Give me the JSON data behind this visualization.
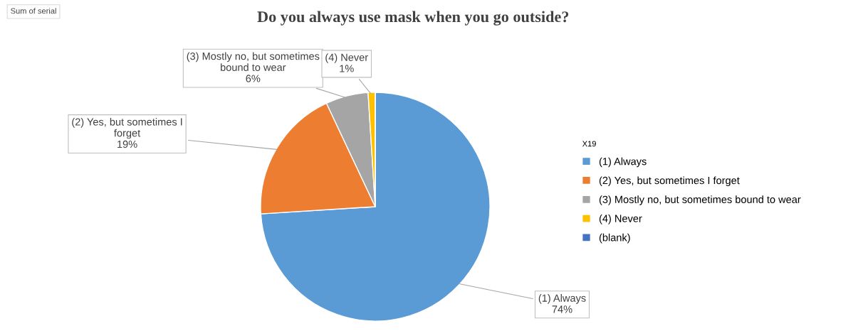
{
  "chart_data": {
    "type": "pie",
    "title": "Do you always use mask when you go outside?",
    "categories": [
      "(1) Always",
      "(2) Yes, but sometimes I forget",
      "(3) Mostly no, but sometimes bound to wear",
      "(4) Never",
      "(blank)"
    ],
    "values": [
      74,
      19,
      6,
      1,
      0
    ],
    "colors": [
      "#5b9bd5",
      "#ed7d31",
      "#a5a5a5",
      "#ffc000",
      "#4472c4"
    ],
    "value_labels": [
      "74%",
      "19%",
      "6%",
      "1%",
      null
    ],
    "legend": "right",
    "legend_title": "X19",
    "annotations": [
      "Sum of serial"
    ]
  }
}
